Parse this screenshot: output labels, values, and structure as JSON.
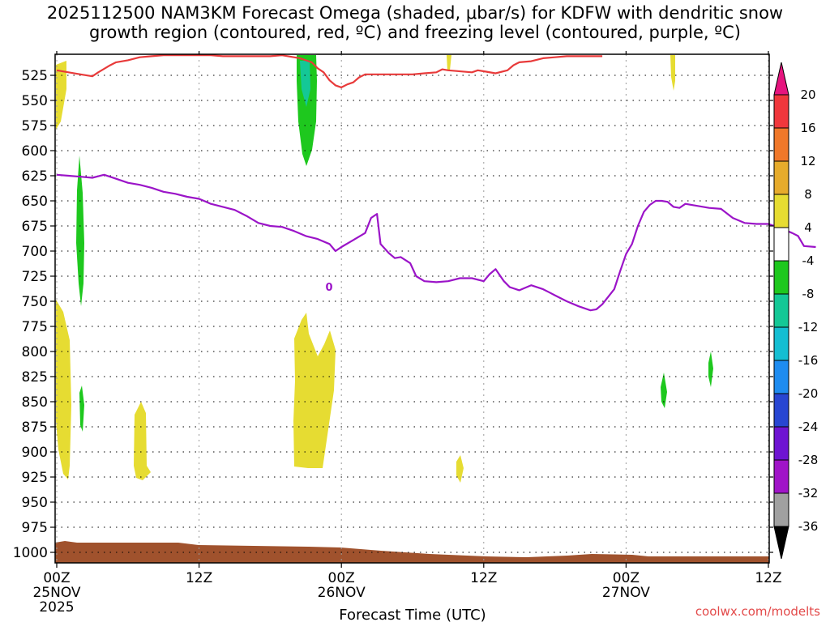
{
  "title_line1": "2025112500 NAM3KM Forecast Omega (shaded, μbar/s) for KDFW with dendritic snow",
  "title_line2": "growth region (contoured, red, ºC) and freezing level (contoured, purple, ºC)",
  "watermark": "coolwx.com/modelts",
  "chart_data": {
    "type": "time-height cross section",
    "title": "2025112500 NAM3KM Forecast Omega (shaded, μbar/s) for KDFW with dendritic snow growth region (contoured, red, ºC) and freezing level (contoured, purple, ºC)",
    "xlabel": "Forecast Time (UTC)",
    "ylabel": "",
    "xlim_hours": [
      0,
      60
    ],
    "ylim_hpa": [
      1010,
      505
    ],
    "x_ticks": [
      {
        "h": 0,
        "label": "00Z",
        "sub1": "25NOV",
        "sub2": "2025"
      },
      {
        "h": 12,
        "label": "12Z",
        "sub1": "",
        "sub2": ""
      },
      {
        "h": 24,
        "label": "00Z",
        "sub1": "26NOV",
        "sub2": ""
      },
      {
        "h": 36,
        "label": "12Z",
        "sub1": "",
        "sub2": ""
      },
      {
        "h": 48,
        "label": "00Z",
        "sub1": "27NOV",
        "sub2": ""
      },
      {
        "h": 60,
        "label": "12Z",
        "sub1": "",
        "sub2": ""
      }
    ],
    "y_ticks": [
      525,
      550,
      575,
      600,
      625,
      650,
      675,
      700,
      725,
      750,
      775,
      800,
      825,
      850,
      875,
      900,
      925,
      950,
      975,
      1000
    ],
    "colorbar": {
      "labels": [
        "20",
        "16",
        "12",
        "8",
        "4",
        "-4",
        "-8",
        "-12",
        "-16",
        "-20",
        "-24",
        "-28",
        "-32",
        "-36"
      ],
      "bands": [
        {
          "from": 16,
          "to": 20,
          "color": "#f0373c"
        },
        {
          "from": 12,
          "to": 16,
          "color": "#f0782a"
        },
        {
          "from": 8,
          "to": 12,
          "color": "#e6ab2c"
        },
        {
          "from": 4,
          "to": 8,
          "color": "#e6dc32"
        },
        {
          "from": -4,
          "to": 4,
          "color": "#ffffff"
        },
        {
          "from": -8,
          "to": -4,
          "color": "#1ec81e"
        },
        {
          "from": -12,
          "to": -8,
          "color": "#14c896"
        },
        {
          "from": -16,
          "to": -12,
          "color": "#14bed2"
        },
        {
          "from": -20,
          "to": -16,
          "color": "#1e8cf0"
        },
        {
          "from": -24,
          "to": -20,
          "color": "#2846d2"
        },
        {
          "from": -28,
          "to": -24,
          "color": "#6e14d2"
        },
        {
          "from": -32,
          "to": -28,
          "color": "#a014c8"
        },
        {
          "from": -36,
          "to": -32,
          "color": "#a0a0a0"
        }
      ],
      "top_arrow_color": "#e6147e",
      "bottom_arrow_color": "#000000"
    },
    "freezing_level_label": "0",
    "freezing_level_hpa": [
      [
        0,
        624
      ],
      [
        1,
        625
      ],
      [
        2,
        626
      ],
      [
        3,
        627
      ],
      [
        4,
        624
      ],
      [
        5,
        628
      ],
      [
        6,
        632
      ],
      [
        7,
        634
      ],
      [
        8,
        637
      ],
      [
        9,
        641
      ],
      [
        10,
        643
      ],
      [
        11,
        646
      ],
      [
        12,
        648
      ],
      [
        13,
        653
      ],
      [
        14,
        656
      ],
      [
        15,
        659
      ],
      [
        16,
        665
      ],
      [
        17,
        672
      ],
      [
        18,
        675
      ],
      [
        19,
        676
      ],
      [
        20,
        680
      ],
      [
        21,
        685
      ],
      [
        22,
        688
      ],
      [
        23,
        693
      ],
      [
        23.5,
        700
      ],
      [
        24,
        696
      ],
      [
        25,
        689
      ],
      [
        26,
        682
      ],
      [
        26.5,
        667
      ],
      [
        27,
        663
      ],
      [
        27.3,
        693
      ],
      [
        28,
        702
      ],
      [
        28.5,
        707
      ],
      [
        29,
        706
      ],
      [
        29.8,
        712
      ],
      [
        30.3,
        725
      ],
      [
        31,
        730
      ],
      [
        32,
        731
      ],
      [
        33,
        730
      ],
      [
        34,
        727
      ],
      [
        35,
        727
      ],
      [
        36,
        730
      ],
      [
        36.5,
        723
      ],
      [
        37,
        718
      ],
      [
        37.7,
        730
      ],
      [
        38.2,
        736
      ],
      [
        39,
        739
      ],
      [
        40,
        734
      ],
      [
        41,
        738
      ],
      [
        41.5,
        741
      ],
      [
        42,
        744
      ],
      [
        43,
        750
      ],
      [
        44,
        755
      ],
      [
        45,
        759
      ],
      [
        45.5,
        758
      ],
      [
        46,
        753
      ],
      [
        47,
        738
      ],
      [
        47.5,
        720
      ],
      [
        48,
        703
      ],
      [
        48.5,
        693
      ],
      [
        49,
        675
      ],
      [
        49.5,
        661
      ],
      [
        50,
        654
      ],
      [
        50.5,
        650
      ],
      [
        51,
        650
      ],
      [
        51.5,
        651
      ],
      [
        52,
        656
      ],
      [
        52.5,
        657
      ],
      [
        53,
        653
      ],
      [
        54,
        655
      ],
      [
        55,
        657
      ],
      [
        56,
        658
      ],
      [
        57,
        667
      ],
      [
        58,
        672
      ],
      [
        59,
        673
      ],
      [
        60,
        673
      ],
      [
        61,
        677
      ],
      [
        62,
        682
      ],
      [
        62.5,
        685
      ],
      [
        63,
        695
      ],
      [
        64,
        696
      ]
    ],
    "dendritic_growth_top_hpa": [
      [
        0,
        520
      ],
      [
        1,
        522
      ],
      [
        2,
        524
      ],
      [
        3,
        526
      ],
      [
        3.5,
        522
      ],
      [
        4.5,
        515
      ],
      [
        5,
        512
      ],
      [
        6,
        510
      ],
      [
        7,
        507
      ],
      [
        8,
        506
      ],
      [
        9,
        505
      ],
      [
        13,
        505
      ],
      [
        14,
        506
      ],
      [
        18,
        506
      ],
      [
        19,
        505
      ],
      [
        20.5,
        508
      ],
      [
        21.5,
        512
      ],
      [
        22,
        518
      ],
      [
        22.5,
        522
      ],
      [
        23,
        530
      ],
      [
        23.5,
        535
      ],
      [
        24,
        537
      ],
      [
        24.5,
        534
      ],
      [
        25,
        532
      ],
      [
        25.5,
        527
      ],
      [
        26,
        524
      ],
      [
        30,
        524
      ],
      [
        31,
        523
      ],
      [
        32,
        522
      ],
      [
        32.5,
        519
      ],
      [
        33,
        520
      ],
      [
        35,
        522
      ],
      [
        35.5,
        520
      ],
      [
        36,
        521
      ],
      [
        37,
        523
      ],
      [
        38,
        520
      ],
      [
        38.5,
        515
      ],
      [
        39,
        512
      ],
      [
        40,
        511
      ],
      [
        41,
        508
      ],
      [
        42,
        507
      ],
      [
        43,
        506
      ],
      [
        46,
        506
      ]
    ]
  }
}
